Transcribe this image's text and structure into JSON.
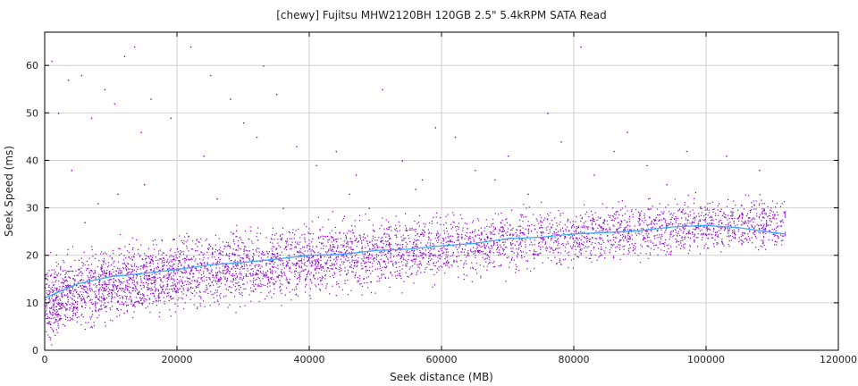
{
  "chart_data": {
    "type": "scatter",
    "title": "[chewy] Fujitsu MHW2120BH 120GB 2.5\" 5.4kRPM SATA Read",
    "xlabel": "Seek distance (MB)",
    "ylabel": "Seek Speed (ms)",
    "xlim": [
      0,
      120000
    ],
    "ylim": [
      0,
      67
    ],
    "xticks": [
      0,
      20000,
      40000,
      60000,
      80000,
      100000,
      120000
    ],
    "yticks": [
      0,
      10,
      20,
      30,
      40,
      50,
      60
    ],
    "grid": true,
    "colors": {
      "points": "#8a00c8",
      "trend": "#3aa8ff"
    },
    "series": [
      {
        "role": "trend",
        "x": [
          0,
          5000,
          10000,
          15000,
          20000,
          25000,
          30000,
          35000,
          40000,
          45000,
          50000,
          55000,
          60000,
          65000,
          70000,
          75000,
          80000,
          85000,
          90000,
          95000,
          100000,
          105000,
          110000,
          112000
        ],
        "y": [
          11,
          14,
          15.5,
          16.2,
          17,
          18,
          18.5,
          19.2,
          20,
          20.2,
          21,
          21.3,
          22,
          22.5,
          23.5,
          23.8,
          24.5,
          24.8,
          25.2,
          26,
          26.3,
          25.8,
          24.8,
          24.5
        ]
      }
    ],
    "scatter_band": {
      "x": [
        0,
        10000,
        20000,
        30000,
        40000,
        50000,
        60000,
        70000,
        80000,
        90000,
        100000,
        112000
      ],
      "y_low": [
        4,
        8,
        10,
        12,
        13.5,
        15,
        16.5,
        18,
        19.5,
        21,
        22,
        22.5
      ],
      "y_high": [
        17,
        20,
        22,
        23.5,
        25,
        26,
        27,
        28,
        29,
        30,
        31,
        31
      ],
      "outliers": [
        [
          1000,
          61
        ],
        [
          2000,
          50
        ],
        [
          3500,
          57
        ],
        [
          5500,
          58
        ],
        [
          7000,
          49
        ],
        [
          9000,
          55
        ],
        [
          10500,
          52
        ],
        [
          12000,
          62
        ],
        [
          13500,
          64
        ],
        [
          14500,
          46
        ],
        [
          16000,
          53
        ],
        [
          19000,
          49
        ],
        [
          22000,
          64
        ],
        [
          24000,
          41
        ],
        [
          25000,
          58
        ],
        [
          28000,
          53
        ],
        [
          30000,
          48
        ],
        [
          32000,
          45
        ],
        [
          33000,
          60
        ],
        [
          35000,
          54
        ],
        [
          38000,
          43
        ],
        [
          41000,
          39
        ],
        [
          44000,
          42
        ],
        [
          47000,
          37
        ],
        [
          49000,
          30
        ],
        [
          51000,
          55
        ],
        [
          54000,
          40
        ],
        [
          56000,
          34
        ],
        [
          59000,
          47
        ],
        [
          62000,
          45
        ],
        [
          65000,
          38
        ],
        [
          68000,
          36
        ],
        [
          70000,
          41
        ],
        [
          73000,
          33
        ],
        [
          76000,
          50
        ],
        [
          78000,
          44
        ],
        [
          81000,
          64
        ],
        [
          83000,
          37
        ],
        [
          86000,
          42
        ],
        [
          88000,
          46
        ],
        [
          91000,
          39
        ],
        [
          94000,
          35
        ],
        [
          97000,
          42
        ],
        [
          103000,
          41
        ],
        [
          108000,
          38
        ],
        [
          4000,
          38
        ],
        [
          8000,
          31
        ],
        [
          15000,
          35
        ],
        [
          11000,
          33
        ],
        [
          6000,
          27
        ],
        [
          26000,
          32
        ],
        [
          36000,
          30
        ],
        [
          46000,
          33
        ],
        [
          57000,
          36
        ]
      ]
    }
  }
}
